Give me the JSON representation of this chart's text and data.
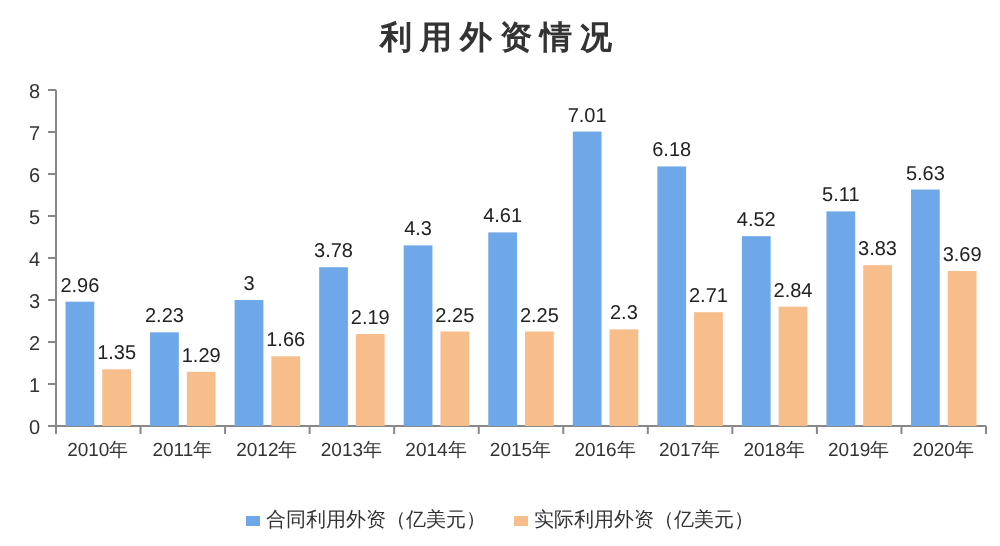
{
  "chart_data": {
    "type": "bar",
    "title": "利用外资情况",
    "categories": [
      "2010年",
      "2011年",
      "2012年",
      "2013年",
      "2014年",
      "2015年",
      "2016年",
      "2017年",
      "2018年",
      "2019年",
      "2020年"
    ],
    "series": [
      {
        "name": "合同利用外资（亿美元）",
        "color": "#6fa8e8",
        "values": [
          2.96,
          2.23,
          3,
          3.78,
          4.3,
          4.61,
          7.01,
          6.18,
          4.52,
          5.11,
          5.63
        ]
      },
      {
        "name": "实际利用外资（亿美元）",
        "color": "#f7bd8a",
        "values": [
          1.35,
          1.29,
          1.66,
          2.19,
          2.25,
          2.25,
          2.3,
          2.71,
          2.84,
          3.83,
          3.69
        ]
      }
    ],
    "ylim": [
      0,
      8
    ],
    "yticks": [
      0,
      1,
      2,
      3,
      4,
      5,
      6,
      7,
      8
    ],
    "grid": false,
    "legend": "bottom",
    "data_labels": true
  }
}
